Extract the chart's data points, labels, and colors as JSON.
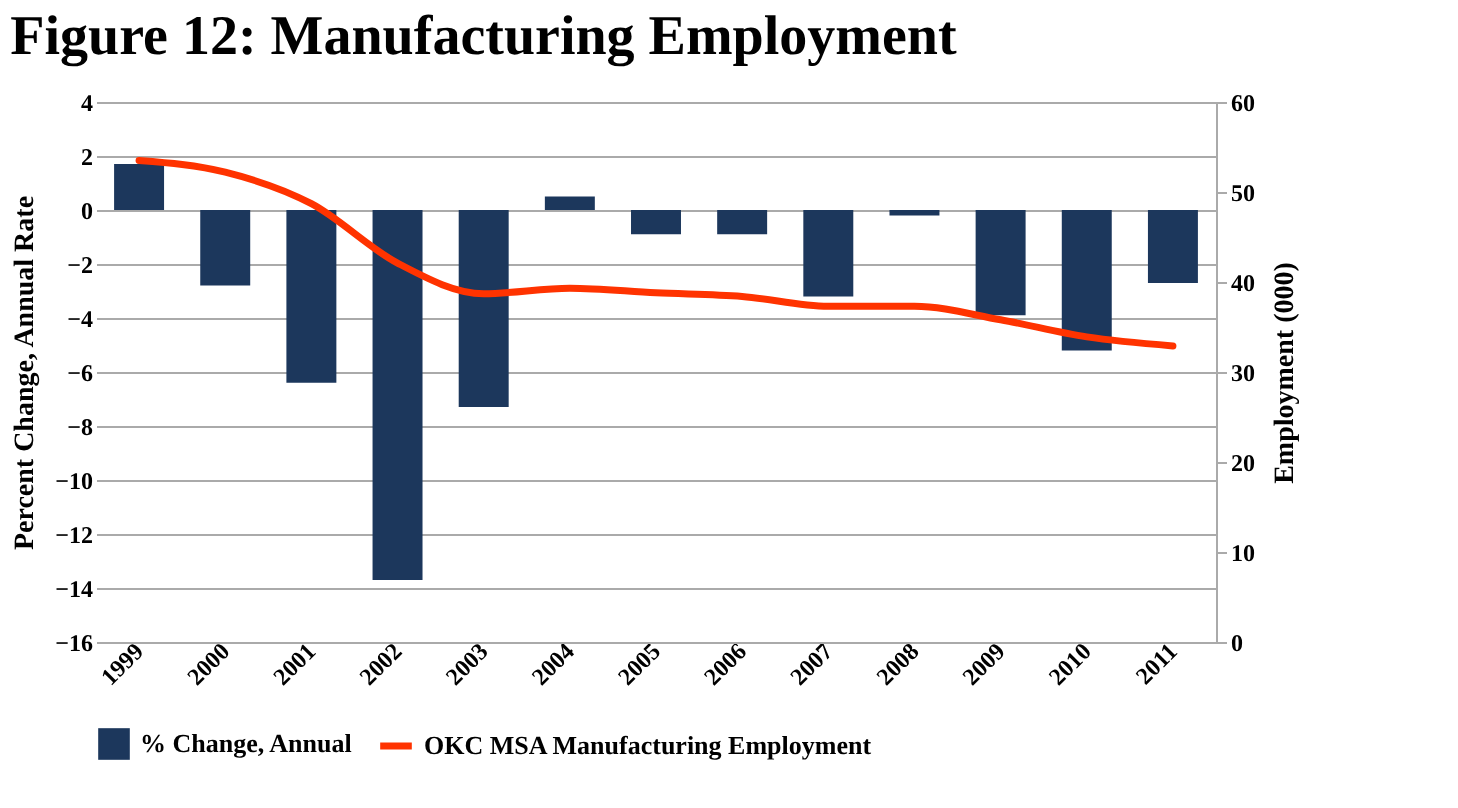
{
  "chart_data": {
    "type": "bar",
    "title": "Figure 12: Manufacturing Employment",
    "categories": [
      "1999",
      "2000",
      "2001",
      "2002",
      "2003",
      "2004",
      "2005",
      "2006",
      "2007",
      "2008",
      "2009",
      "2010",
      "2011"
    ],
    "series": [
      {
        "name": "% Change,  Annual",
        "type": "bar",
        "color": "#1c375c",
        "values": [
          1.7,
          -2.8,
          -6.4,
          -13.7,
          -7.3,
          0.5,
          -0.9,
          -0.9,
          -3.2,
          -0.2,
          -3.9,
          -5.2,
          -2.7
        ]
      },
      {
        "name": "OKC MSA Manufacturing  Employment",
        "type": "line",
        "axis": "y2",
        "color": "#ff3300",
        "values": [
          53.5,
          52.2,
          48.7,
          42.1,
          38.7,
          39.3,
          38.8,
          38.4,
          37.3,
          37.3,
          35.8,
          33.9,
          32.9
        ]
      }
    ],
    "ylabel": "Percent Change,  Annual  Rate",
    "y2label": "Employment (000)",
    "ylim": [
      -16,
      4
    ],
    "yticks": [
      -16,
      -14,
      -12,
      -10,
      -8,
      -6,
      -4,
      -2,
      0,
      2,
      4
    ],
    "y2lim": [
      0,
      60
    ],
    "y2ticks": [
      0,
      10,
      20,
      30,
      40,
      50,
      60
    ],
    "grid": "y",
    "legend": "bottom",
    "line_style": "solid",
    "marker": "none"
  }
}
